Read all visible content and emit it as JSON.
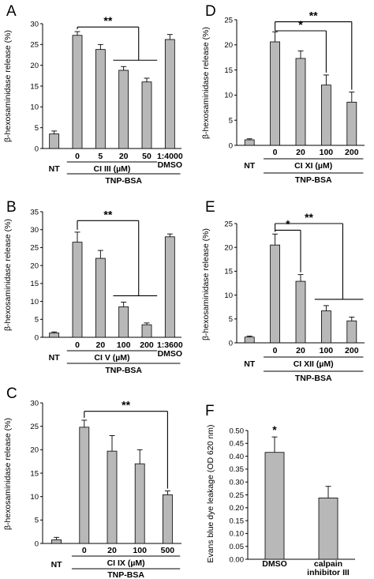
{
  "figure_title": "",
  "chart_data": [
    {
      "panel": "A",
      "type": "bar",
      "ylabel": "β-hexosaminidase release (%)",
      "ylim": [
        0,
        30
      ],
      "yticks": [
        0,
        5,
        10,
        15,
        20,
        25,
        30
      ],
      "categories": [
        "",
        "0",
        "5",
        "20",
        "50",
        "1:4000\nDMSO"
      ],
      "values": [
        3.5,
        27.2,
        23.8,
        18.8,
        16.0,
        26.2
      ],
      "errors": [
        0.7,
        0.9,
        1.2,
        0.9,
        0.9,
        1.2
      ],
      "nt_label": "NT",
      "inhibitor_label": "CI III (µM)",
      "stim_label": "TNP-BSA",
      "significance": [
        {
          "from": 1,
          "to": [
            3,
            4
          ],
          "y": 29.2,
          "label": "**",
          "style": "group"
        }
      ]
    },
    {
      "panel": "B",
      "type": "bar",
      "ylabel": "β-hexosaminidase release (%)",
      "ylim": [
        0,
        35
      ],
      "yticks": [
        0,
        5,
        10,
        15,
        20,
        25,
        30,
        35
      ],
      "categories": [
        "",
        "0",
        "20",
        "100",
        "200",
        "1:3600\nDMSO"
      ],
      "values": [
        1.2,
        26.5,
        22.0,
        8.5,
        3.5,
        28.0
      ],
      "errors": [
        0.3,
        2.8,
        2.2,
        1.3,
        0.5,
        0.8
      ],
      "nt_label": "NT",
      "inhibitor_label": "CI V (µM)",
      "stim_label": "TNP-BSA",
      "significance": [
        {
          "from": 1,
          "to": [
            3,
            4
          ],
          "y": 32.5,
          "label": "**",
          "style": "group"
        }
      ]
    },
    {
      "panel": "C",
      "type": "bar",
      "ylabel": "β-hexosaminidase release (%)",
      "ylim": [
        0,
        30
      ],
      "yticks": [
        0,
        5,
        10,
        15,
        20,
        25,
        30
      ],
      "categories": [
        "",
        "0",
        "20",
        "100",
        "500"
      ],
      "values": [
        0.8,
        24.8,
        19.7,
        17.0,
        10.4
      ],
      "errors": [
        0.5,
        1.5,
        3.3,
        3.0,
        0.8
      ],
      "nt_label": "NT",
      "inhibitor_label": "CI IX (µM)",
      "stim_label": "TNP-BSA",
      "significance": [
        {
          "from": 1,
          "to": [
            4
          ],
          "y": 28.2,
          "label": "**",
          "style": "pair"
        }
      ]
    },
    {
      "panel": "D",
      "type": "bar",
      "ylabel": "β-hexosaminidase release (%)",
      "ylim": [
        0,
        25
      ],
      "yticks": [
        0,
        5,
        10,
        15,
        20,
        25
      ],
      "categories": [
        "",
        "0",
        "20",
        "100",
        "200"
      ],
      "values": [
        1.1,
        20.6,
        17.3,
        12.0,
        8.6
      ],
      "errors": [
        0.2,
        2.0,
        1.5,
        2.0,
        2.0
      ],
      "nt_label": "NT",
      "inhibitor_label": "CI XI (µM)",
      "stim_label": "TNP-BSA",
      "significance": [
        {
          "from": 1,
          "to": [
            4
          ],
          "y": 24.6,
          "label": "**",
          "style": "pair"
        },
        {
          "from": 1,
          "to": [
            3
          ],
          "y": 22.8,
          "label": "*",
          "style": "pair"
        }
      ]
    },
    {
      "panel": "E",
      "type": "bar",
      "ylabel": "β-hexosaminidase release (%)",
      "ylim": [
        0,
        25
      ],
      "yticks": [
        0,
        5,
        10,
        15,
        20,
        25
      ],
      "categories": [
        "",
        "0",
        "20",
        "100",
        "200"
      ],
      "values": [
        1.2,
        20.5,
        12.9,
        6.7,
        4.6
      ],
      "errors": [
        0.2,
        2.3,
        1.4,
        1.1,
        0.8
      ],
      "nt_label": "NT",
      "inhibitor_label": "CI XII (µM)",
      "stim_label": "TNP-BSA",
      "significance": [
        {
          "from": 1,
          "to": [
            2
          ],
          "y": 23.6,
          "label": "*",
          "style": "pair"
        },
        {
          "from": 1,
          "to": [
            3,
            4
          ],
          "y": 25.0,
          "label": "**",
          "style": "group"
        }
      ]
    },
    {
      "panel": "F",
      "type": "bar",
      "ylabel": "Evans blue dye leakage (OD 620 nm)",
      "ylim": [
        0,
        0.5
      ],
      "yticks": [
        "0.00",
        "0.05",
        "0.10",
        "0.15",
        "0.20",
        "0.25",
        "0.30",
        "0.35",
        "0.40",
        "0.45",
        "0.50"
      ],
      "categories": [
        "DMSO",
        "calpain\ninhibitor III"
      ],
      "values": [
        0.415,
        0.238
      ],
      "errors": [
        0.06,
        0.045
      ],
      "markers": [
        {
          "bar": 0,
          "label": "*"
        }
      ]
    }
  ]
}
